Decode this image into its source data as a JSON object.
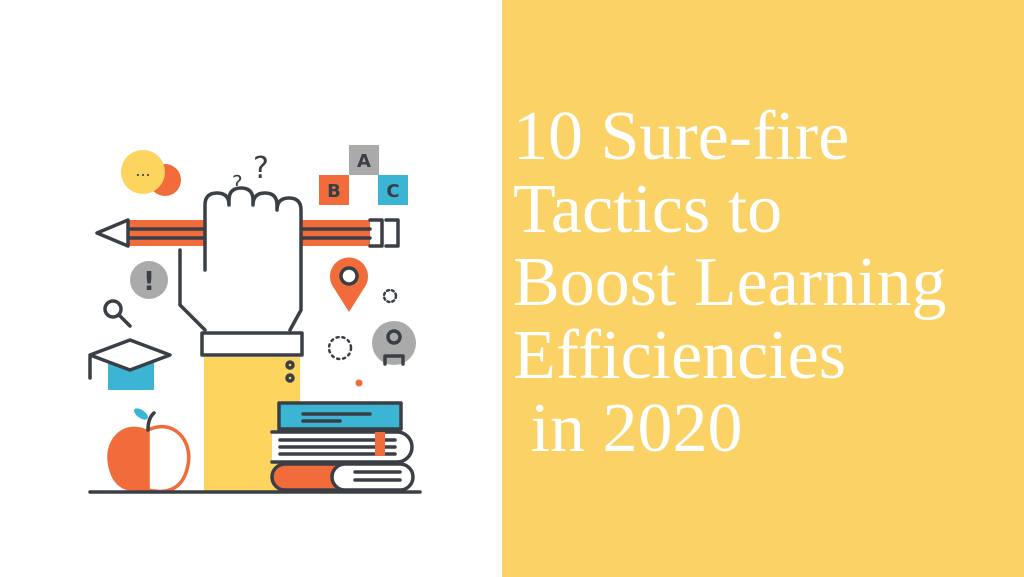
{
  "title_lines": [
    "10 Sure-fire",
    "Tactics to",
    "Boost Learning",
    "Efficiencies",
    " in 2020"
  ],
  "illustration": {
    "blocks": [
      "A",
      "B",
      "C"
    ],
    "speech_bubble_text": "...",
    "question_marks": [
      "?",
      "?"
    ],
    "alert_symbol": "!"
  },
  "colors": {
    "panel": "#fbd265",
    "orange": "#f26b3a",
    "yellow": "#fcd45e",
    "blue": "#3cb4d4",
    "gray": "#aaaaaa",
    "line": "#3a3f45"
  }
}
